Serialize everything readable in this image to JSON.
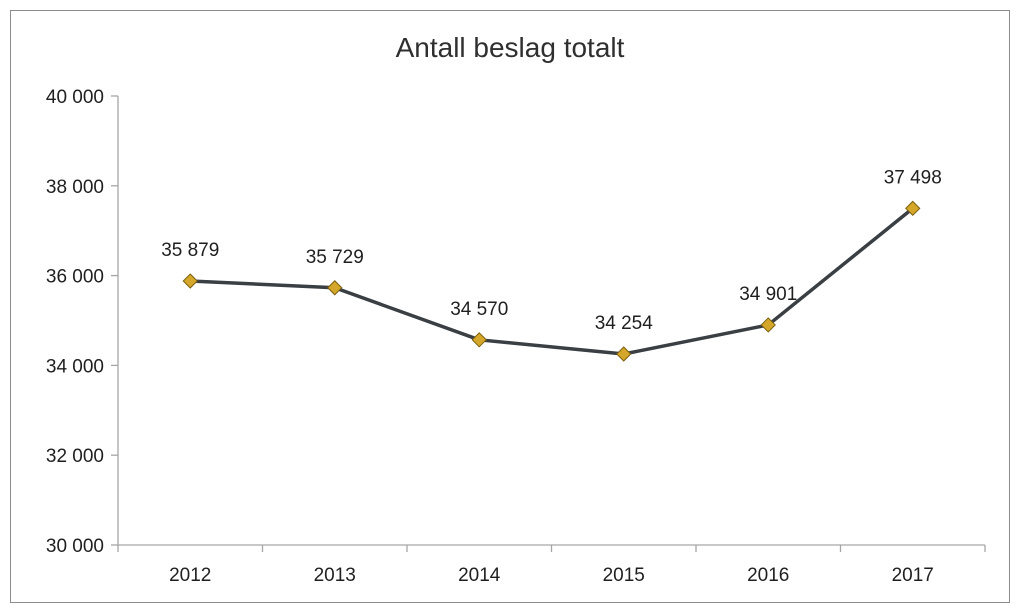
{
  "chart_data": {
    "type": "line",
    "title": "Antall beslag totalt",
    "xlabel": "",
    "ylabel": "",
    "categories": [
      "2012",
      "2013",
      "2014",
      "2015",
      "2016",
      "2017"
    ],
    "series": [
      {
        "values": [
          35879,
          35729,
          34570,
          34254,
          34901,
          37498
        ],
        "data_labels": [
          "35 879",
          "35 729",
          "34 570",
          "34 254",
          "34 901",
          "37 498"
        ],
        "line_color": "#3a3f44",
        "marker": "diamond",
        "marker_color": "#d4a62a",
        "marker_edge_color": "#7a5f10"
      }
    ],
    "ylim": [
      30000,
      40000
    ],
    "yticks": [
      30000,
      32000,
      34000,
      36000,
      38000,
      40000
    ],
    "ytick_labels": [
      "30 000",
      "32 000",
      "34 000",
      "36 000",
      "38 000",
      "40 000"
    ],
    "grid": false,
    "legend": "none"
  }
}
